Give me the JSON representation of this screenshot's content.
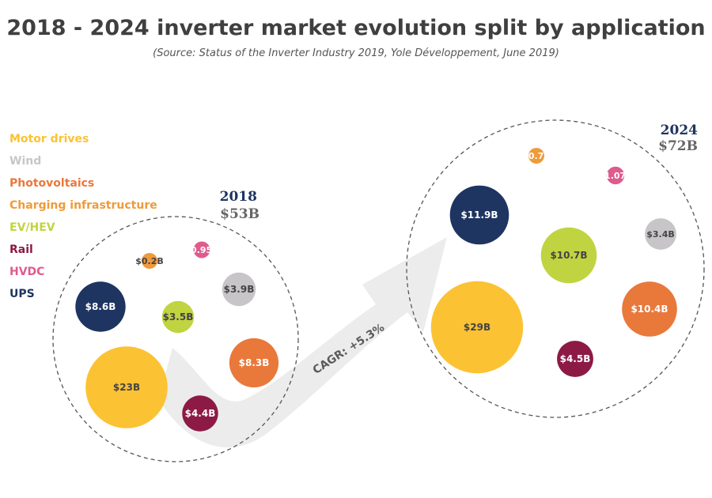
{
  "title": "2018 - 2024 inverter market evolution split by application",
  "subtitle": "(Source: Status of the Inverter Industry 2019, Yole Développement, June 2019)",
  "colors": {
    "motor_drives": "#fbc234",
    "wind": "#c7c5c8",
    "photovoltaics": "#e9783b",
    "charging": "#ef9a3b",
    "ev_hev": "#c0d441",
    "rail": "#8c1a45",
    "hvdc": "#de5b8e",
    "ups": "#1e3461",
    "year_2018": "#1e3461",
    "year_2024": "#1e3461",
    "total": "#666666",
    "arrow": "#ececec",
    "cagr_text": "#5a5a5a"
  },
  "legend": [
    {
      "label": "Motor drives",
      "color": "#fbc234"
    },
    {
      "label": "Wind",
      "color": "#c7c5c8"
    },
    {
      "label": "Photovoltaics",
      "color": "#e9783b"
    },
    {
      "label": "Charging infrastructure",
      "color": "#ef9a3b"
    },
    {
      "label": "EV/HEV",
      "color": "#c0d441"
    },
    {
      "label": "Rail",
      "color": "#8c1a45"
    },
    {
      "label": "HVDC",
      "color": "#de5b8e"
    },
    {
      "label": "UPS",
      "color": "#1e3461"
    }
  ],
  "cagr_label": "CAGR: +5.3%",
  "chart_data": {
    "type": "bubble",
    "title": "2018 - 2024 inverter market evolution split by application",
    "unit": "$B",
    "annotation": "CAGR: +5.3%",
    "groups": [
      {
        "year": "2018",
        "total_label": "$53B",
        "total": 53,
        "bubbles": [
          {
            "application": "Motor drives",
            "value": 23,
            "label": "$23B"
          },
          {
            "application": "UPS",
            "value": 8.6,
            "label": "$8.6B"
          },
          {
            "application": "EV/HEV",
            "value": 3.5,
            "label": "$3.5B"
          },
          {
            "application": "Charging infrastructure",
            "value": 0.2,
            "label": "$0.2B"
          },
          {
            "application": "HVDC",
            "value": 0.95,
            "label": "$0.95B"
          },
          {
            "application": "Wind",
            "value": 3.9,
            "label": "$3.9B"
          },
          {
            "application": "Photovoltaics",
            "value": 8.3,
            "label": "$8.3B"
          },
          {
            "application": "Rail",
            "value": 4.4,
            "label": "$4.4B"
          }
        ]
      },
      {
        "year": "2024",
        "total_label": "$72B",
        "total": 72,
        "bubbles": [
          {
            "application": "UPS",
            "value": 11.9,
            "label": "$11.9B"
          },
          {
            "application": "Charging infrastructure",
            "value": 0.7,
            "label": "$0.7B"
          },
          {
            "application": "HVDC",
            "value": 1.07,
            "label": "$1.07B"
          },
          {
            "application": "EV/HEV",
            "value": 10.7,
            "label": "$10.7B"
          },
          {
            "application": "Wind",
            "value": 3.4,
            "label": "$3.4B"
          },
          {
            "application": "Motor drives",
            "value": 29,
            "label": "$29B"
          },
          {
            "application": "Photovoltaics",
            "value": 10.4,
            "label": "$10.4B"
          },
          {
            "application": "Rail",
            "value": 4.5,
            "label": "$4.5B"
          }
        ]
      }
    ]
  }
}
